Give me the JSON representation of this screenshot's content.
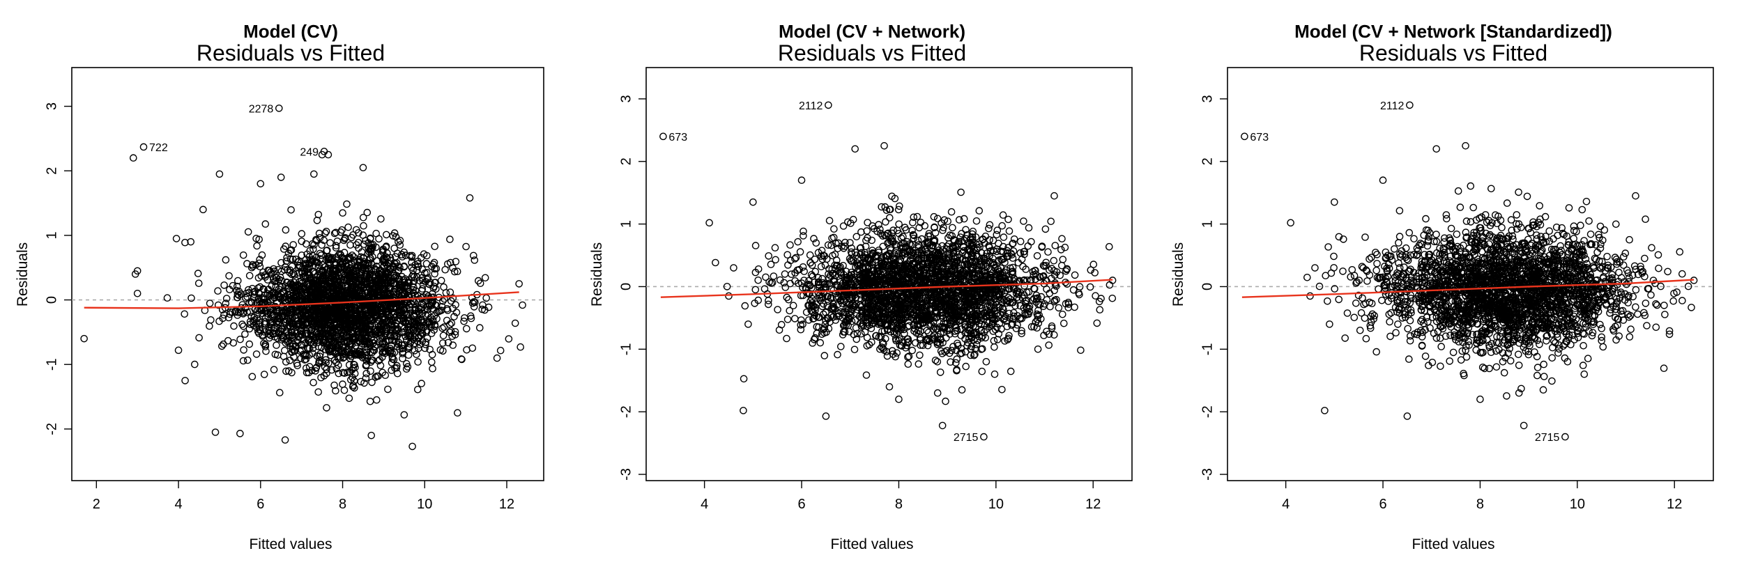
{
  "chart_data": [
    {
      "type": "scatter",
      "title": "Model (CV)",
      "subtitle": "Residuals vs Fitted",
      "xlabel": "Fitted values",
      "ylabel": "Residuals",
      "xlim": [
        1.4,
        12.9
      ],
      "ylim": [
        -2.8,
        3.6
      ],
      "xticks": [
        2,
        4,
        6,
        8,
        10,
        12
      ],
      "yticks": [
        -2,
        -1,
        0,
        1,
        2,
        3
      ],
      "reference_line": 0,
      "smooth_line": {
        "x": [
          1.7,
          4.0,
          6.0,
          8.0,
          10.0,
          12.3
        ],
        "y": [
          -0.12,
          -0.13,
          -0.1,
          -0.04,
          0.03,
          0.12
        ]
      },
      "cluster": {
        "center": [
          8.1,
          -0.1
        ],
        "spread": [
          1.25,
          0.5
        ],
        "count": 2600
      },
      "points": [
        {
          "x": 1.7,
          "y": -0.6
        },
        {
          "x": 2.9,
          "y": 2.2
        },
        {
          "x": 3.0,
          "y": 0.45
        },
        {
          "x": 2.95,
          "y": 0.4
        },
        {
          "x": 3.0,
          "y": 0.1
        },
        {
          "x": 3.95,
          "y": 0.95
        },
        {
          "x": 4.0,
          "y": -0.78
        },
        {
          "x": 4.3,
          "y": 0.9
        },
        {
          "x": 4.9,
          "y": -2.05
        },
        {
          "x": 5.5,
          "y": -2.07
        },
        {
          "x": 6.6,
          "y": -2.17
        },
        {
          "x": 8.7,
          "y": -2.1
        },
        {
          "x": 9.7,
          "y": -2.27
        },
        {
          "x": 9.5,
          "y": -1.78
        },
        {
          "x": 10.8,
          "y": -1.75
        },
        {
          "x": 11.1,
          "y": 1.58
        },
        {
          "x": 12.3,
          "y": 0.25
        },
        {
          "x": 6.5,
          "y": 1.9
        },
        {
          "x": 4.6,
          "y": 1.4
        },
        {
          "x": 5.0,
          "y": 1.95
        },
        {
          "x": 8.5,
          "y": 2.05
        },
        {
          "x": 7.5,
          "y": 2.25
        },
        {
          "x": 7.65,
          "y": 2.25
        },
        {
          "x": 6.0,
          "y": 1.8
        },
        {
          "x": 7.3,
          "y": 1.95
        }
      ],
      "labeled_points": [
        {
          "x": 6.45,
          "y": 2.97,
          "label": "2278",
          "side": "left"
        },
        {
          "x": 3.15,
          "y": 2.37,
          "label": "722",
          "side": "right"
        },
        {
          "x": 7.55,
          "y": 2.3,
          "label": "249",
          "side": "left"
        }
      ]
    },
    {
      "type": "scatter",
      "title": "Model (CV + Network)",
      "subtitle": "Residuals vs Fitted",
      "xlabel": "Fitted values",
      "ylabel": "Residuals",
      "xlim": [
        2.8,
        12.8
      ],
      "ylim": [
        -3.1,
        3.5
      ],
      "xticks": [
        4,
        6,
        8,
        10,
        12
      ],
      "yticks": [
        -3,
        -2,
        -1,
        0,
        1,
        2,
        3
      ],
      "reference_line": 0,
      "smooth_line": {
        "x": [
          3.1,
          5.0,
          7.0,
          9.0,
          11.0,
          12.4
        ],
        "y": [
          -0.17,
          -0.12,
          -0.06,
          0.0,
          0.05,
          0.11
        ]
      },
      "cluster": {
        "center": [
          8.5,
          -0.05
        ],
        "spread": [
          1.3,
          0.5
        ],
        "count": 2600
      },
      "points": [
        {
          "x": 4.1,
          "y": 1.02
        },
        {
          "x": 4.8,
          "y": -1.98
        },
        {
          "x": 6.5,
          "y": -2.07
        },
        {
          "x": 8.9,
          "y": -2.22
        },
        {
          "x": 12.4,
          "y": 0.1
        },
        {
          "x": 11.2,
          "y": 1.45
        },
        {
          "x": 7.7,
          "y": 2.25
        },
        {
          "x": 7.1,
          "y": 2.2
        },
        {
          "x": 4.6,
          "y": 0.3
        },
        {
          "x": 4.5,
          "y": -0.15
        },
        {
          "x": 5.0,
          "y": 1.35
        },
        {
          "x": 6.0,
          "y": 1.7
        },
        {
          "x": 8.8,
          "y": -1.7
        },
        {
          "x": 9.3,
          "y": -1.65
        },
        {
          "x": 8.0,
          "y": -1.8
        },
        {
          "x": 9.8,
          "y": -1.2
        },
        {
          "x": 4.9,
          "y": -0.6
        }
      ],
      "labeled_points": [
        {
          "x": 6.55,
          "y": 2.9,
          "label": "2112",
          "side": "left"
        },
        {
          "x": 3.15,
          "y": 2.4,
          "label": "673",
          "side": "right"
        },
        {
          "x": 9.75,
          "y": -2.4,
          "label": "2715",
          "side": "left"
        }
      ]
    },
    {
      "type": "scatter",
      "title": "Model (CV + Network [Standardized])",
      "subtitle": "Residuals vs Fitted",
      "xlabel": "Fitted values",
      "ylabel": "Residuals",
      "xlim": [
        2.8,
        12.8
      ],
      "ylim": [
        -3.1,
        3.5
      ],
      "xticks": [
        4,
        6,
        8,
        10,
        12
      ],
      "yticks": [
        -3,
        -2,
        -1,
        0,
        1,
        2,
        3
      ],
      "reference_line": 0,
      "smooth_line": {
        "x": [
          3.1,
          5.0,
          7.0,
          9.0,
          11.0,
          12.4
        ],
        "y": [
          -0.17,
          -0.12,
          -0.06,
          0.0,
          0.05,
          0.11
        ]
      },
      "cluster": {
        "center": [
          8.5,
          -0.05
        ],
        "spread": [
          1.3,
          0.5
        ],
        "count": 2600
      },
      "points": [
        {
          "x": 4.1,
          "y": 1.02
        },
        {
          "x": 4.8,
          "y": -1.98
        },
        {
          "x": 6.5,
          "y": -2.07
        },
        {
          "x": 8.9,
          "y": -2.22
        },
        {
          "x": 12.4,
          "y": 0.1
        },
        {
          "x": 11.2,
          "y": 1.45
        },
        {
          "x": 7.7,
          "y": 2.25
        },
        {
          "x": 7.1,
          "y": 2.2
        },
        {
          "x": 4.6,
          "y": 0.3
        },
        {
          "x": 4.5,
          "y": -0.15
        },
        {
          "x": 5.0,
          "y": 1.35
        },
        {
          "x": 6.0,
          "y": 1.7
        },
        {
          "x": 8.8,
          "y": -1.7
        },
        {
          "x": 9.3,
          "y": -1.65
        },
        {
          "x": 8.0,
          "y": -1.8
        },
        {
          "x": 9.8,
          "y": -1.2
        },
        {
          "x": 4.9,
          "y": -0.6
        }
      ],
      "labeled_points": [
        {
          "x": 6.55,
          "y": 2.9,
          "label": "2112",
          "side": "left"
        },
        {
          "x": 3.15,
          "y": 2.4,
          "label": "673",
          "side": "right"
        },
        {
          "x": 9.75,
          "y": -2.4,
          "label": "2715",
          "side": "left"
        }
      ]
    }
  ],
  "colors": {
    "points": "#000000",
    "smooth": "#e8331c",
    "reference": "#aaaaaa"
  }
}
